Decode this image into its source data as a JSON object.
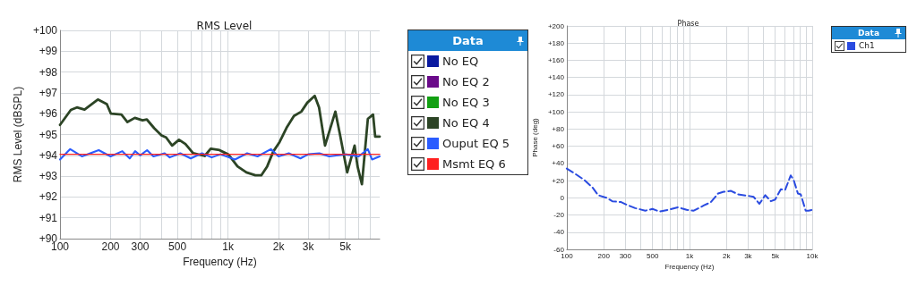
{
  "chart_data": [
    {
      "type": "line",
      "title": "RMS Level",
      "xlabel": "Frequency (Hz)",
      "ylabel": "RMS Level (dBSPL)",
      "legend_title": "Data",
      "log": "x",
      "grid": true,
      "legend": "right",
      "marker": "none",
      "line_style": "solid",
      "xlim": [
        100,
        8000
      ],
      "ylim": [
        90,
        100
      ],
      "xticks": [
        100,
        200,
        300,
        {
          "value": 400,
          "label": null
        },
        500,
        {
          "value": 600,
          "label": null
        },
        {
          "value": 700,
          "label": null
        },
        {
          "value": 800,
          "label": null
        },
        {
          "value": 900,
          "label": null
        },
        {
          "value": 1000,
          "label": "1k"
        },
        {
          "value": 2000,
          "label": "2k"
        },
        {
          "value": 3000,
          "label": "3k"
        },
        {
          "value": 4000,
          "label": null
        },
        {
          "value": 5000,
          "label": "5k"
        },
        {
          "value": 6000,
          "label": null
        },
        {
          "value": 7000,
          "label": null
        }
      ],
      "yticks": [
        {
          "value": 90,
          "label": "+90"
        },
        {
          "value": 91,
          "label": "+91"
        },
        {
          "value": 92,
          "label": "+92"
        },
        {
          "value": 93,
          "label": "+93"
        },
        {
          "value": 94,
          "label": "+94"
        },
        {
          "value": 95,
          "label": "+95"
        },
        {
          "value": 96,
          "label": "+96"
        },
        {
          "value": 97,
          "label": "+97"
        },
        {
          "value": 98,
          "label": "+98"
        },
        {
          "value": 99,
          "label": "+99"
        },
        {
          "value": 100,
          "label": "+100"
        }
      ],
      "series": [
        {
          "name": "No EQ",
          "color": "#0a1aa0"
        },
        {
          "name": "No EQ 2",
          "color": "#6a0a8a"
        },
        {
          "name": "No EQ 3",
          "color": "#12a012"
        },
        {
          "name": "No EQ 4",
          "color": "#2c4425",
          "x": [
            100,
            116,
            126,
            140,
            168,
            190,
            201,
            232,
            252,
            279,
            310,
            329,
            364,
            402,
            428,
            465,
            511,
            558,
            620,
            727,
            789,
            890,
            1006,
            1139,
            1287,
            1455,
            1578,
            1712,
            1859,
            2016,
            2231,
            2469,
            2733,
            2966,
            3283,
            3485,
            3781,
            4022,
            4357,
            4633,
            5125,
            5672,
            5904,
            6270,
            6800,
            7305,
            7520,
            8000
          ],
          "values": [
            95.46,
            96.18,
            96.3,
            96.2,
            96.68,
            96.46,
            96.0,
            95.96,
            95.6,
            95.8,
            95.68,
            95.72,
            95.3,
            94.96,
            94.86,
            94.47,
            94.75,
            94.54,
            94.1,
            93.97,
            94.32,
            94.25,
            94.04,
            93.47,
            93.18,
            93.04,
            93.04,
            93.47,
            94.18,
            94.6,
            95.32,
            95.89,
            96.1,
            96.53,
            96.86,
            96.3,
            94.47,
            95.18,
            96.1,
            95.03,
            93.18,
            94.47,
            93.47,
            92.61,
            95.75,
            95.96,
            94.9,
            94.9
          ]
        },
        {
          "name": "Ouput EQ 5",
          "color": "#2a5cff",
          "x": [
            100,
            115,
            135,
            170,
            200,
            235,
            260,
            280,
            300,
            330,
            360,
            420,
            450,
            520,
            600,
            700,
            800,
            900,
            1100,
            1300,
            1500,
            1800,
            2000,
            2300,
            2700,
            3000,
            3500,
            4000,
            5000,
            6000,
            6800,
            7200,
            8000
          ],
          "values": [
            93.8,
            94.3,
            93.95,
            94.25,
            93.95,
            94.2,
            93.85,
            94.2,
            94.0,
            94.25,
            93.95,
            94.1,
            93.9,
            94.1,
            93.85,
            94.1,
            93.9,
            94.05,
            93.8,
            94.1,
            93.95,
            94.3,
            93.95,
            94.1,
            93.85,
            94.05,
            94.1,
            93.95,
            94.05,
            93.95,
            94.3,
            93.8,
            93.95
          ]
        },
        {
          "name": "Msmt EQ 6",
          "color": "#ff2020",
          "x": [
            100,
            8000
          ],
          "values": [
            94.05,
            94.05
          ]
        }
      ]
    },
    {
      "type": "line",
      "title": "Phase",
      "xlabel": "Frequency (Hz)",
      "ylabel": "Phase (deg)",
      "legend_title": "Data",
      "log": "x",
      "grid": true,
      "legend": "right",
      "marker": "none",
      "line_style": "dashed",
      "xlim": [
        100,
        10000
      ],
      "ylim": [
        -60,
        200
      ],
      "xticks": [
        100,
        200,
        300,
        {
          "value": 400,
          "label": null
        },
        500,
        {
          "value": 600,
          "label": null
        },
        {
          "value": 700,
          "label": null
        },
        {
          "value": 800,
          "label": null
        },
        {
          "value": 900,
          "label": null
        },
        {
          "value": 1000,
          "label": "1k"
        },
        {
          "value": 2000,
          "label": "2k"
        },
        {
          "value": 3000,
          "label": "3k"
        },
        {
          "value": 4000,
          "label": null
        },
        {
          "value": 5000,
          "label": "5k"
        },
        {
          "value": 6000,
          "label": null
        },
        {
          "value": 7000,
          "label": null
        },
        {
          "value": 8000,
          "label": null
        },
        {
          "value": 9000,
          "label": null
        },
        {
          "value": 10000,
          "label": "10k"
        }
      ],
      "yticks": [
        -60,
        -40,
        -20,
        0,
        {
          "value": 20,
          "label": "+20"
        },
        {
          "value": 40,
          "label": "+40"
        },
        {
          "value": 60,
          "label": "+60"
        },
        {
          "value": 80,
          "label": "+80"
        },
        {
          "value": 100,
          "label": "+100"
        },
        {
          "value": 120,
          "label": "+120"
        },
        {
          "value": 140,
          "label": "+140"
        },
        {
          "value": 160,
          "label": "+160"
        },
        {
          "value": 180,
          "label": "+180"
        },
        {
          "value": 200,
          "label": "+200"
        }
      ],
      "series": [
        {
          "name": "Ch1",
          "color": "#2a4be0",
          "x": [
            100,
            117,
            138,
            162,
            180,
            211,
            235,
            277,
            307,
            361,
            436,
            499,
            570,
            668,
            807,
            947,
            1084,
            1306,
            1495,
            1710,
            1903,
            2178,
            2492,
            2772,
            3086,
            3335,
            3713,
            4143,
            4603,
            4993,
            5549,
            6011,
            6676,
            7051,
            7644,
            8063,
            8845,
            9330,
            10000
          ],
          "values": [
            34,
            28,
            21,
            12,
            3,
            0,
            -4,
            -5,
            -8,
            -12,
            -15,
            -13,
            -16,
            -14,
            -11,
            -14,
            -15,
            -9,
            -5,
            5,
            7,
            8,
            4,
            3,
            2,
            1,
            -7,
            3,
            -4,
            -2,
            10,
            9,
            26,
            21,
            5,
            4,
            -15,
            -15,
            -14
          ]
        }
      ]
    }
  ]
}
